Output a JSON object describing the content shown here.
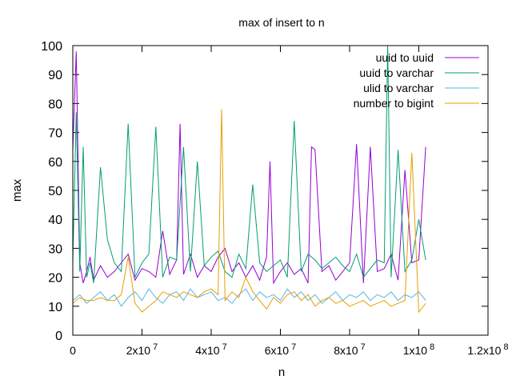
{
  "chart_data": {
    "type": "line",
    "title": "max of insert to n",
    "xlabel": "n",
    "ylabel": "max",
    "xlim": [
      0,
      120000000
    ],
    "ylim": [
      0,
      100
    ],
    "legend_position": "top-right",
    "x_ticks": [
      {
        "value": 0,
        "label": "0",
        "exp": ""
      },
      {
        "value": 20000000,
        "label": "2x10",
        "exp": "7"
      },
      {
        "value": 40000000,
        "label": "4x10",
        "exp": "7"
      },
      {
        "value": 60000000,
        "label": "6x10",
        "exp": "7"
      },
      {
        "value": 80000000,
        "label": "8x10",
        "exp": "7"
      },
      {
        "value": 100000000,
        "label": "1x10",
        "exp": "8"
      },
      {
        "value": 120000000,
        "label": "1.2x10",
        "exp": "8"
      }
    ],
    "y_ticks": [
      0,
      10,
      20,
      30,
      40,
      50,
      60,
      70,
      80,
      90,
      100
    ],
    "series": [
      {
        "name": "uuid to uuid",
        "color": "#9400d3",
        "x": [
          0,
          1000000,
          2000000,
          3000000,
          4000000,
          5000000,
          6000000,
          8000000,
          10000000,
          12000000,
          14000000,
          16000000,
          18000000,
          20000000,
          22000000,
          24000000,
          26000000,
          28000000,
          30000000,
          31000000,
          32000000,
          34000000,
          36000000,
          38000000,
          40000000,
          42000000,
          44000000,
          46000000,
          48000000,
          50000000,
          52000000,
          54000000,
          56000000,
          57000000,
          58000000,
          60000000,
          62000000,
          64000000,
          66000000,
          68000000,
          69000000,
          70000000,
          72000000,
          74000000,
          76000000,
          78000000,
          80000000,
          82000000,
          84000000,
          86000000,
          88000000,
          90000000,
          92000000,
          94000000,
          96000000,
          98000000,
          100000000,
          102000000
        ],
        "y": [
          64,
          98,
          25,
          18,
          22,
          27,
          19,
          24,
          20,
          22,
          25,
          28,
          19,
          23,
          22,
          20,
          36,
          21,
          26,
          73,
          21,
          28,
          20,
          24,
          22,
          27,
          30,
          22,
          25,
          20,
          24,
          19,
          27,
          60,
          18,
          22,
          25,
          21,
          23,
          18,
          65,
          64,
          22,
          24,
          19,
          22,
          25,
          66,
          18,
          65,
          22,
          23,
          28,
          19,
          57,
          25,
          26,
          65
        ]
      },
      {
        "name": "uuid to varchar",
        "color": "#009e73",
        "x": [
          0,
          1000000,
          2000000,
          3000000,
          4000000,
          5000000,
          6000000,
          8000000,
          10000000,
          12000000,
          14000000,
          16000000,
          18000000,
          20000000,
          22000000,
          24000000,
          26000000,
          28000000,
          30000000,
          32000000,
          34000000,
          36000000,
          38000000,
          40000000,
          42000000,
          44000000,
          46000000,
          48000000,
          50000000,
          52000000,
          54000000,
          56000000,
          58000000,
          60000000,
          62000000,
          64000000,
          66000000,
          68000000,
          70000000,
          72000000,
          74000000,
          76000000,
          78000000,
          80000000,
          82000000,
          84000000,
          86000000,
          88000000,
          90000000,
          91000000,
          92000000,
          94000000,
          96000000,
          98000000,
          100000000,
          102000000
        ],
        "y": [
          25,
          77,
          22,
          65,
          20,
          25,
          18,
          58,
          33,
          25,
          22,
          73,
          20,
          25,
          28,
          72,
          20,
          27,
          26,
          65,
          22,
          60,
          24,
          27,
          29,
          22,
          20,
          28,
          23,
          52,
          25,
          22,
          24,
          26,
          20,
          74,
          22,
          28,
          26,
          23,
          25,
          27,
          24,
          22,
          28,
          20,
          23,
          26,
          25,
          100,
          20,
          64,
          22,
          26,
          40,
          26
        ]
      },
      {
        "name": "ulid to varchar",
        "color": "#56b4e9",
        "x": [
          0,
          2000000,
          4000000,
          6000000,
          8000000,
          10000000,
          12000000,
          14000000,
          16000000,
          18000000,
          20000000,
          22000000,
          24000000,
          26000000,
          28000000,
          30000000,
          32000000,
          34000000,
          36000000,
          38000000,
          40000000,
          42000000,
          44000000,
          46000000,
          48000000,
          50000000,
          52000000,
          54000000,
          56000000,
          58000000,
          60000000,
          62000000,
          64000000,
          66000000,
          68000000,
          70000000,
          72000000,
          74000000,
          76000000,
          78000000,
          80000000,
          82000000,
          84000000,
          86000000,
          88000000,
          90000000,
          92000000,
          94000000,
          96000000,
          98000000,
          100000000,
          102000000
        ],
        "y": [
          12,
          14,
          11,
          13,
          15,
          12,
          14,
          10,
          13,
          15,
          12,
          16,
          13,
          11,
          14,
          15,
          12,
          16,
          13,
          14,
          15,
          12,
          13,
          11,
          14,
          16,
          12,
          15,
          13,
          14,
          12,
          16,
          13,
          15,
          12,
          14,
          11,
          13,
          15,
          12,
          14,
          13,
          15,
          12,
          14,
          13,
          15,
          12,
          14,
          13,
          15,
          12
        ]
      },
      {
        "name": "number to bigint",
        "color": "#e69f00",
        "x": [
          0,
          2000000,
          4000000,
          6000000,
          8000000,
          10000000,
          12000000,
          14000000,
          16000000,
          18000000,
          20000000,
          22000000,
          24000000,
          26000000,
          28000000,
          30000000,
          32000000,
          34000000,
          36000000,
          38000000,
          40000000,
          42000000,
          43000000,
          44000000,
          46000000,
          48000000,
          50000000,
          52000000,
          54000000,
          56000000,
          58000000,
          60000000,
          62000000,
          64000000,
          66000000,
          68000000,
          70000000,
          72000000,
          74000000,
          76000000,
          78000000,
          80000000,
          82000000,
          84000000,
          86000000,
          88000000,
          90000000,
          92000000,
          94000000,
          96000000,
          98000000,
          100000000,
          102000000
        ],
        "y": [
          11,
          13,
          12,
          12,
          13,
          12,
          12,
          14,
          27,
          11,
          8,
          10,
          12,
          15,
          14,
          13,
          15,
          14,
          13,
          15,
          16,
          14,
          78,
          12,
          15,
          13,
          20,
          15,
          12,
          9,
          13,
          11,
          14,
          15,
          12,
          14,
          10,
          12,
          13,
          11,
          12,
          10,
          11,
          12,
          10,
          11,
          12,
          10,
          11,
          12,
          63,
          8,
          11
        ]
      }
    ]
  }
}
